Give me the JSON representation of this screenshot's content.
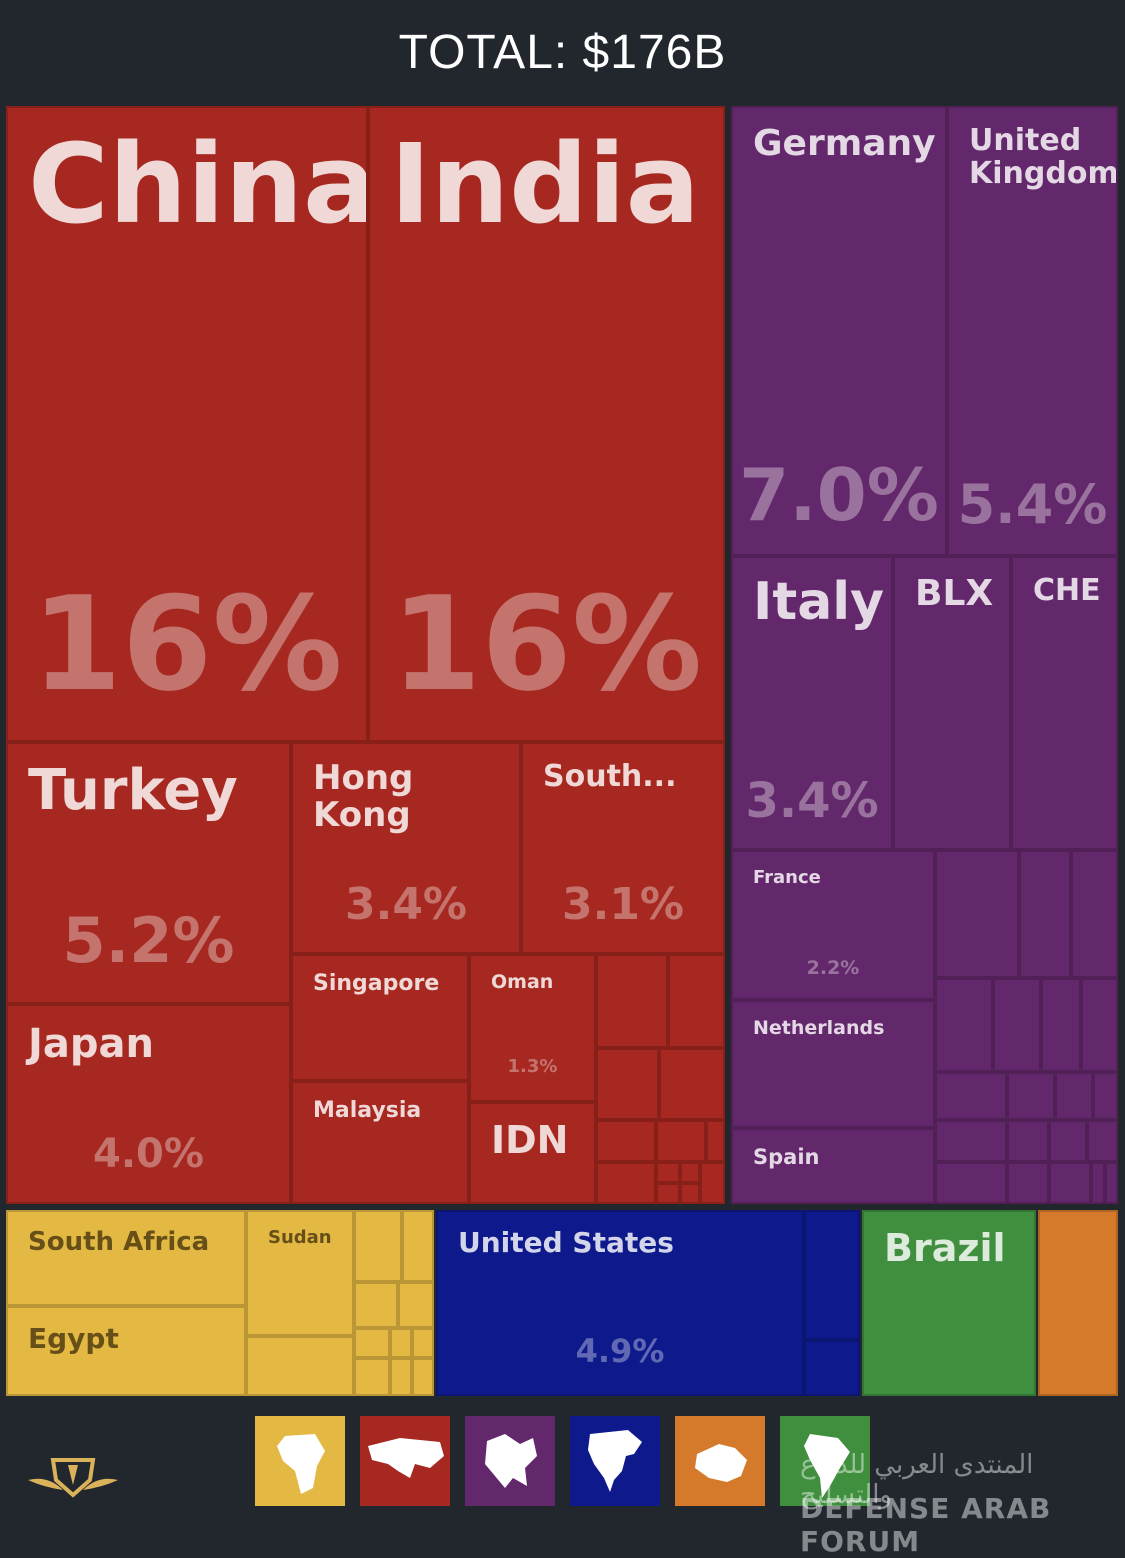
{
  "header": {
    "total": "TOTAL: $176B"
  },
  "colors": {
    "asia": "#a62820",
    "europe": "#63286b",
    "africa": "#e3b843",
    "north_america": "#0e1a8c",
    "south_america": "#3f8f3f",
    "oceania": "#d47a2a",
    "background": "#22272e"
  },
  "chart_data": {
    "type": "treemap",
    "title": "TOTAL: $176B",
    "categories": [
      {
        "name": "China",
        "region": "asia",
        "value": 16
      },
      {
        "name": "India",
        "region": "asia",
        "value": 16
      },
      {
        "name": "Turkey",
        "region": "asia",
        "value": 5.2
      },
      {
        "name": "Hong Kong",
        "region": "asia",
        "value": 3.4
      },
      {
        "name": "South...",
        "region": "asia",
        "value": 3.1
      },
      {
        "name": "Japan",
        "region": "asia",
        "value": 4.0
      },
      {
        "name": "Singapore",
        "region": "asia",
        "value": null
      },
      {
        "name": "Oman",
        "region": "asia",
        "value": 1.3
      },
      {
        "name": "Malaysia",
        "region": "asia",
        "value": null
      },
      {
        "name": "IDN",
        "region": "asia",
        "value": null
      },
      {
        "name": "Germany",
        "region": "europe",
        "value": 7.0
      },
      {
        "name": "United Kingdom",
        "region": "europe",
        "value": 5.4
      },
      {
        "name": "Italy",
        "region": "europe",
        "value": 3.4
      },
      {
        "name": "BLX",
        "region": "europe",
        "value": null
      },
      {
        "name": "CHE",
        "region": "europe",
        "value": null
      },
      {
        "name": "France",
        "region": "europe",
        "value": 2.2
      },
      {
        "name": "Netherlands",
        "region": "europe",
        "value": null
      },
      {
        "name": "Spain",
        "region": "europe",
        "value": null
      },
      {
        "name": "South Africa",
        "region": "africa",
        "value": null
      },
      {
        "name": "Sudan",
        "region": "africa",
        "value": null
      },
      {
        "name": "Egypt",
        "region": "africa",
        "value": null
      },
      {
        "name": "United States",
        "region": "north_america",
        "value": 4.9
      },
      {
        "name": "Brazil",
        "region": "south_america",
        "value": null
      }
    ],
    "value_unit": "%",
    "value_labels": {
      "China": "16%",
      "India": "16%",
      "Turkey": "5.2%",
      "Hong Kong": "3.4%",
      "South...": "3.1%",
      "Japan": "4.0%",
      "Oman": "1.3%",
      "Germany": "7.0%",
      "United Kingdom": "5.4%",
      "Italy": "3.4%",
      "France": "2.2%",
      "United States": "4.9%"
    }
  },
  "legend": {
    "tiles": [
      {
        "region": "africa",
        "icon": "africa-map-icon"
      },
      {
        "region": "asia",
        "icon": "asia-map-icon"
      },
      {
        "region": "europe",
        "icon": "europe-map-icon"
      },
      {
        "region": "north_america",
        "icon": "north-america-map-icon"
      },
      {
        "region": "oceania",
        "icon": "oceania-map-icon"
      },
      {
        "region": "south_america",
        "icon": "south-america-map-icon"
      }
    ]
  },
  "watermark": {
    "arabic": "المنتدى العربي للدفاع والتسليح",
    "latin": "DEFENSE ARAB FORUM"
  }
}
